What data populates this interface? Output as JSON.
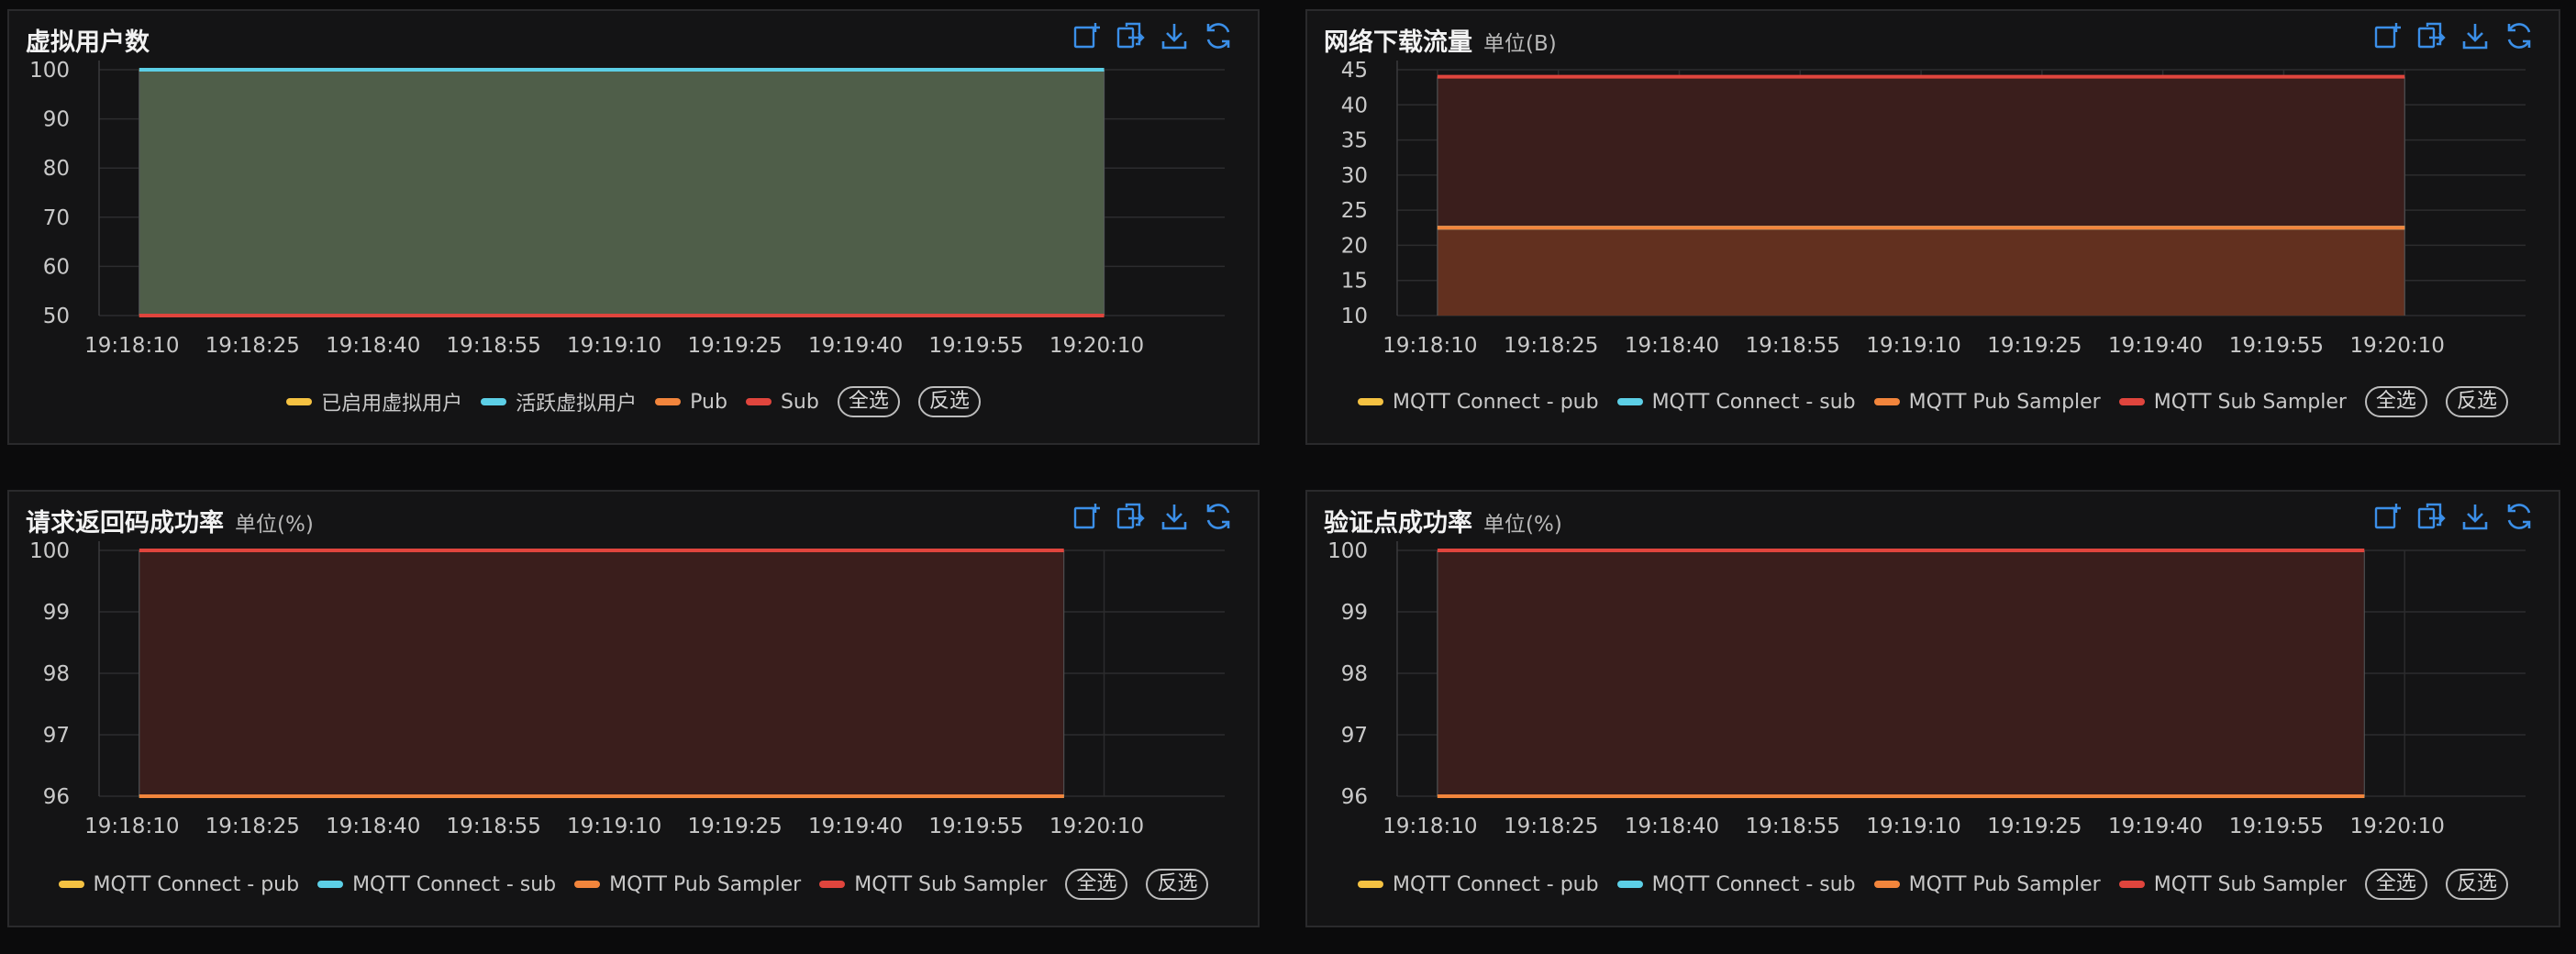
{
  "colors": {
    "yellow": "#f5c242",
    "cyan": "#5ccfe6",
    "orange": "#f2853c",
    "red": "#e0453d",
    "toolbar_icon": "#3b8fe8"
  },
  "toolbar_icons": [
    "add-widget-icon",
    "export-icon",
    "download-icon",
    "refresh-icon"
  ],
  "select_all_label": "全选",
  "invert_selection_label": "反选",
  "panels": [
    {
      "title": "虚拟用户数",
      "unit": "",
      "legend": [
        "已启用虚拟用户",
        "活跃虚拟用户",
        "Pub",
        "Sub"
      ]
    },
    {
      "title": "网络下载流量",
      "unit": "单位(B)",
      "legend": [
        "MQTT Connect - pub",
        "MQTT Connect - sub",
        "MQTT Pub Sampler",
        "MQTT Sub Sampler"
      ]
    },
    {
      "title": "请求返回码成功率",
      "unit": "单位(%)",
      "legend": [
        "MQTT Connect - pub",
        "MQTT Connect - sub",
        "MQTT Pub Sampler",
        "MQTT Sub Sampler"
      ]
    },
    {
      "title": "验证点成功率",
      "unit": "单位(%)",
      "legend": [
        "MQTT Connect - pub",
        "MQTT Connect - sub",
        "MQTT Pub Sampler",
        "MQTT Sub Sampler"
      ]
    }
  ],
  "chart_data": [
    {
      "type": "area",
      "title": "虚拟用户数",
      "x_ticks": [
        "19:18:10",
        "19:18:25",
        "19:18:40",
        "19:18:55",
        "19:19:10",
        "19:19:25",
        "19:19:40",
        "19:19:55",
        "19:20:10"
      ],
      "x_range_sec": [
        0,
        140
      ],
      "data_range_sec": [
        5,
        125
      ],
      "ylim": [
        50,
        100
      ],
      "y_ticks": [
        50,
        60,
        70,
        80,
        90,
        100
      ],
      "grid": true,
      "legend_position": "bottom",
      "series": [
        {
          "name": "已启用虚拟用户",
          "color": "yellow",
          "value": 100
        },
        {
          "name": "活跃虚拟用户",
          "color": "cyan",
          "value": 100
        },
        {
          "name": "Pub",
          "color": "orange",
          "value": 50
        },
        {
          "name": "Sub",
          "color": "red",
          "value": 50
        }
      ],
      "fill": "#4f5e49"
    },
    {
      "type": "area",
      "title": "网络下载流量",
      "x_ticks": [
        "19:18:10",
        "19:18:25",
        "19:18:40",
        "19:18:55",
        "19:19:10",
        "19:19:25",
        "19:19:40",
        "19:19:55",
        "19:20:10"
      ],
      "x_range_sec": [
        0,
        140
      ],
      "data_range_sec": [
        5,
        125
      ],
      "ylim": [
        10,
        45
      ],
      "y_ticks": [
        10,
        15,
        20,
        25,
        30,
        35,
        40,
        45
      ],
      "grid": true,
      "legend_position": "bottom",
      "series": [
        {
          "name": "MQTT Connect - pub",
          "color": "yellow",
          "value": 22.5
        },
        {
          "name": "MQTT Connect - sub",
          "color": "cyan",
          "value": 22.5
        },
        {
          "name": "MQTT Pub Sampler",
          "color": "orange",
          "value": 22.5
        },
        {
          "name": "MQTT Sub Sampler",
          "color": "red",
          "value": 44
        }
      ],
      "fill": "#3a1e1c",
      "fill_lower": "#62301f"
    },
    {
      "type": "area",
      "title": "请求返回码成功率",
      "x_ticks": [
        "19:18:10",
        "19:18:25",
        "19:18:40",
        "19:18:55",
        "19:19:10",
        "19:19:25",
        "19:19:40",
        "19:19:55",
        "19:20:10"
      ],
      "x_range_sec": [
        0,
        140
      ],
      "data_range_sec": [
        5,
        120
      ],
      "ylim": [
        96,
        100
      ],
      "y_ticks": [
        96,
        97,
        98,
        99,
        100
      ],
      "grid": true,
      "legend_position": "bottom",
      "series": [
        {
          "name": "MQTT Connect - pub",
          "color": "yellow",
          "value": 96
        },
        {
          "name": "MQTT Connect - sub",
          "color": "cyan",
          "value": 96
        },
        {
          "name": "MQTT Pub Sampler",
          "color": "orange",
          "value": 96
        },
        {
          "name": "MQTT Sub Sampler",
          "color": "red",
          "value": 100
        }
      ],
      "fill": "#3a1e1c"
    },
    {
      "type": "area",
      "title": "验证点成功率",
      "x_ticks": [
        "19:18:10",
        "19:18:25",
        "19:18:40",
        "19:18:55",
        "19:19:10",
        "19:19:25",
        "19:19:40",
        "19:19:55",
        "19:20:10"
      ],
      "x_range_sec": [
        0,
        140
      ],
      "data_range_sec": [
        5,
        120
      ],
      "ylim": [
        96,
        100
      ],
      "y_ticks": [
        96,
        97,
        98,
        99,
        100
      ],
      "grid": true,
      "legend_position": "bottom",
      "series": [
        {
          "name": "MQTT Connect - pub",
          "color": "yellow",
          "value": 96
        },
        {
          "name": "MQTT Connect - sub",
          "color": "cyan",
          "value": 96
        },
        {
          "name": "MQTT Pub Sampler",
          "color": "orange",
          "value": 96
        },
        {
          "name": "MQTT Sub Sampler",
          "color": "red",
          "value": 100
        }
      ],
      "fill": "#3a1e1c"
    }
  ]
}
